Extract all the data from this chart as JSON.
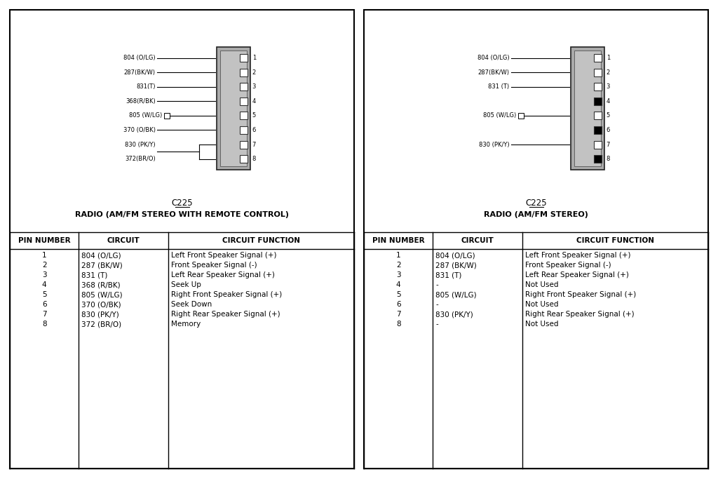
{
  "bg_color": "#ffffff",
  "left_title1": "C225",
  "left_title2": "RADIO (AM/FM STEREO WITH REMOTE CONTROL)",
  "left_pins": [
    "1",
    "2",
    "3",
    "4",
    "5",
    "6",
    "7",
    "8"
  ],
  "left_circuits": [
    "804 (O/LG)",
    "287 (BK/W)",
    "831 (T)",
    "368 (R/BK)",
    "805 (W/LG)",
    "370 (O/BK)",
    "830 (PK/Y)",
    "372 (BR/O)"
  ],
  "left_functions": [
    "Left Front Speaker Signal (+)",
    "Front Speaker Signal (-)",
    "Left Rear Speaker Signal (+)",
    "Seek Up",
    "Right Front Speaker Signal (+)",
    "Seek Down",
    "Right Rear Speaker Signal (+)",
    "Memory"
  ],
  "left_wire_labels": [
    "804 (O/LG)",
    "287(BK/W)",
    "831(T)",
    "368(R/BK)",
    "805 (W/LG)",
    "370 (O/BK)",
    "830 (PK/Y)",
    "372(BR/O)"
  ],
  "right_title1": "C225",
  "right_title2": "RADIO (AM/FM STEREO)",
  "right_pins": [
    "1",
    "2",
    "3",
    "4",
    "5",
    "6",
    "7",
    "8"
  ],
  "right_circuits": [
    "804 (O/LG)",
    "287 (BK/W)",
    "831 (T)",
    "-",
    "805 (W/LG)",
    "-",
    "830 (PK/Y)",
    "-"
  ],
  "right_functions": [
    "Left Front Speaker Signal (+)",
    "Front Speaker Signal (-)",
    "Left Rear Speaker Signal (+)",
    "Not Used",
    "Right Front Speaker Signal (+)",
    "Not Used",
    "Right Rear Speaker Signal (+)",
    "Not Used"
  ],
  "right_wire_labels": [
    "804 (O/LG)",
    "287(BK/W)",
    "831 (T)",
    "",
    "805 (W/LG)",
    "",
    "830 (PK/Y)",
    ""
  ],
  "right_has_wire": [
    true,
    true,
    true,
    false,
    true,
    false,
    true,
    false
  ],
  "diagram_fontsize": 6.0,
  "header_fontsize": 7.5,
  "body_fontsize": 7.5,
  "pin_num_fontsize": 6.0
}
